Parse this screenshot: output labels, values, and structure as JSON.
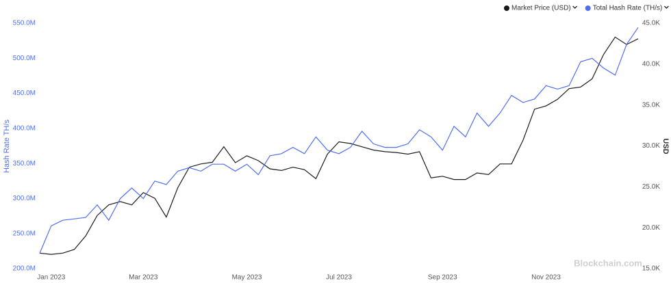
{
  "chart_data": {
    "type": "line",
    "categories": [
      null,
      "Jan 2023",
      null,
      null,
      null,
      null,
      null,
      null,
      null,
      "Mar 2023",
      null,
      null,
      null,
      null,
      null,
      null,
      null,
      null,
      "May 2023",
      null,
      null,
      null,
      null,
      null,
      null,
      null,
      "Jul 2023",
      null,
      null,
      null,
      null,
      null,
      null,
      null,
      null,
      "Sep 2023",
      null,
      null,
      null,
      null,
      null,
      null,
      null,
      null,
      "Nov 2023",
      null,
      null,
      null,
      null,
      null,
      null,
      null,
      null
    ],
    "ylabel": "Hash Rate TH/s",
    "y2label": "USD",
    "watermark": "Blockchain.com",
    "grid": false,
    "legend": "top-right",
    "ylim": [
      200000000,
      550000000
    ],
    "yticks": [
      {
        "value": 200000000,
        "label": "200.0M"
      },
      {
        "value": 250000000,
        "label": "250.0M"
      },
      {
        "value": 300000000,
        "label": "300.0M"
      },
      {
        "value": 350000000,
        "label": "350.0M"
      },
      {
        "value": 400000000,
        "label": "400.0M"
      },
      {
        "value": 450000000,
        "label": "450.0M"
      },
      {
        "value": 500000000,
        "label": "500.0M"
      },
      {
        "value": 550000000,
        "label": "550.0M"
      }
    ],
    "y2lim": [
      15000,
      45000
    ],
    "y2ticks": [
      {
        "value": 15000,
        "label": "15.0K"
      },
      {
        "value": 20000,
        "label": "20.0K"
      },
      {
        "value": 25000,
        "label": "25.0K"
      },
      {
        "value": 30000,
        "label": "30.0K"
      },
      {
        "value": 35000,
        "label": "35.0K"
      },
      {
        "value": 40000,
        "label": "40.0K"
      },
      {
        "value": 45000,
        "label": "45.0K"
      }
    ],
    "series": [
      {
        "name": "Market Price (USD)",
        "color": "#1a1a1a",
        "axis": "y2",
        "values": [
          16900,
          16750,
          16900,
          17340,
          19000,
          21500,
          22800,
          23200,
          22800,
          24300,
          23600,
          21300,
          24900,
          27400,
          27800,
          28000,
          29900,
          27950,
          28800,
          28200,
          27200,
          27000,
          27400,
          27100,
          26000,
          29000,
          30500,
          30300,
          29900,
          29500,
          29300,
          29200,
          29000,
          29300,
          26100,
          26300,
          25900,
          25900,
          26700,
          26500,
          27800,
          27800,
          30700,
          34500,
          34900,
          35700,
          37000,
          37200,
          38200,
          41200,
          43300,
          42400,
          43100
        ]
      },
      {
        "name": "Total Hash Rate (TH/s)",
        "color": "#4f6ef2",
        "values": [
          222000000,
          261000000,
          269000000,
          271000000,
          273000000,
          291000000,
          269000000,
          300000000,
          315000000,
          300000000,
          325000000,
          320000000,
          339000000,
          344000000,
          339000000,
          349000000,
          349000000,
          339000000,
          349000000,
          334000000,
          361000000,
          364000000,
          373000000,
          364000000,
          388000000,
          369000000,
          364000000,
          373000000,
          396000000,
          378000000,
          373000000,
          373000000,
          378000000,
          398000000,
          388000000,
          369000000,
          403000000,
          388000000,
          422000000,
          403000000,
          422000000,
          447000000,
          437000000,
          442000000,
          461000000,
          456000000,
          461000000,
          495000000,
          500000000,
          486000000,
          476000000,
          520000000,
          544000000
        ]
      }
    ]
  }
}
